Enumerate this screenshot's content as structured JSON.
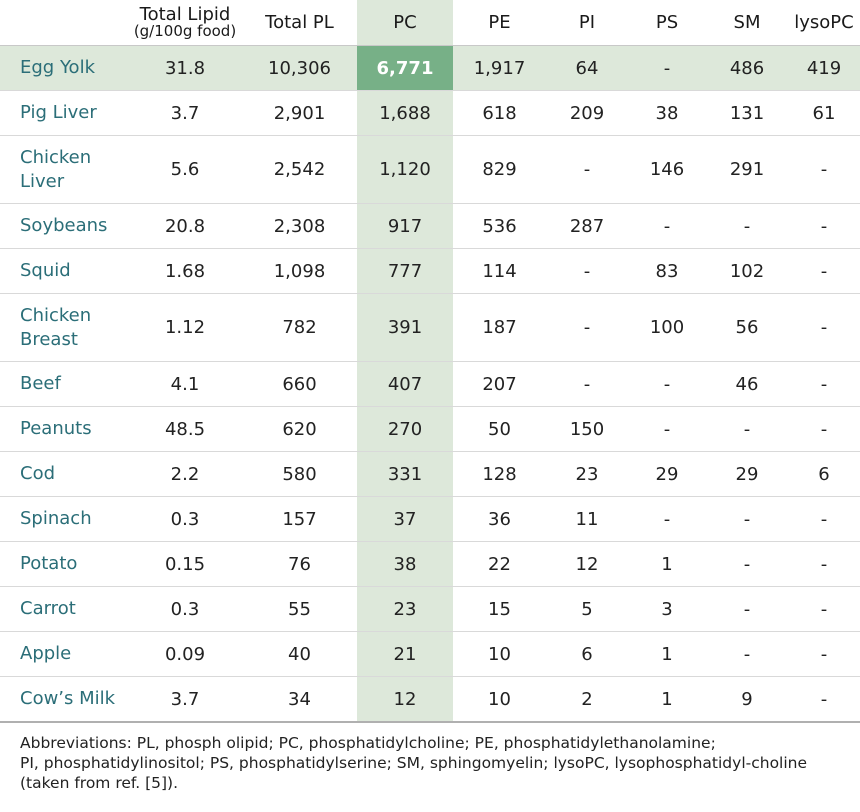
{
  "columns": {
    "food": "",
    "lipid_line1": "Total Lipid",
    "lipid_line2": "(g/100g food)",
    "total_pl": "Total PL",
    "pc": "PC",
    "pe": "PE",
    "pi": "PI",
    "ps": "PS",
    "sm": "SM",
    "lysopc": "lysoPC"
  },
  "rows": [
    {
      "food": "Egg Yolk",
      "lipid": "31.8",
      "total_pl": "10,306",
      "pc": "6,771",
      "pe": "1,917",
      "pi": "64",
      "ps": "-",
      "sm": "486",
      "lysopc": "419"
    },
    {
      "food": "Pig Liver",
      "lipid": "3.7",
      "total_pl": "2,901",
      "pc": "1,688",
      "pe": "618",
      "pi": "209",
      "ps": "38",
      "sm": "131",
      "lysopc": "61"
    },
    {
      "food_line1": "Chicken",
      "food_line2": "Liver",
      "lipid": "5.6",
      "total_pl": "2,542",
      "pc": "1,120",
      "pe": "829",
      "pi": "-",
      "ps": "146",
      "sm": "291",
      "lysopc": "-"
    },
    {
      "food": "Soybeans",
      "lipid": "20.8",
      "total_pl": "2,308",
      "pc": "917",
      "pe": "536",
      "pi": "287",
      "ps": "-",
      "sm": "-",
      "lysopc": "-"
    },
    {
      "food": "Squid",
      "lipid": "1.68",
      "total_pl": "1,098",
      "pc": "777",
      "pe": "114",
      "pi": "-",
      "ps": "83",
      "sm": "102",
      "lysopc": "-"
    },
    {
      "food_line1": "Chicken",
      "food_line2": "Breast",
      "lipid": "1.12",
      "total_pl": "782",
      "pc": "391",
      "pe": "187",
      "pi": "-",
      "ps": "100",
      "sm": "56",
      "lysopc": "-"
    },
    {
      "food": "Beef",
      "lipid": "4.1",
      "total_pl": "660",
      "pc": "407",
      "pe": "207",
      "pi": "-",
      "ps": "-",
      "sm": "46",
      "lysopc": "-"
    },
    {
      "food": "Peanuts",
      "lipid": "48.5",
      "total_pl": "620",
      "pc": "270",
      "pe": "50",
      "pi": "150",
      "ps": "-",
      "sm": "-",
      "lysopc": "-"
    },
    {
      "food": "Cod",
      "lipid": "2.2",
      "total_pl": "580",
      "pc": "331",
      "pe": "128",
      "pi": "23",
      "ps": "29",
      "sm": "29",
      "lysopc": "6"
    },
    {
      "food": "Spinach",
      "lipid": "0.3",
      "total_pl": "157",
      "pc": "37",
      "pe": "36",
      "pi": "11",
      "ps": "-",
      "sm": "-",
      "lysopc": "-"
    },
    {
      "food": "Potato",
      "lipid": "0.15",
      "total_pl": "76",
      "pc": "38",
      "pe": "22",
      "pi": "12",
      "ps": "1",
      "sm": "-",
      "lysopc": "-"
    },
    {
      "food": "Carrot",
      "lipid": "0.3",
      "total_pl": "55",
      "pc": "23",
      "pe": "15",
      "pi": "5",
      "ps": "3",
      "sm": "-",
      "lysopc": "-"
    },
    {
      "food": "Apple",
      "lipid": "0.09",
      "total_pl": "40",
      "pc": "21",
      "pe": "10",
      "pi": "6",
      "ps": "1",
      "sm": "-",
      "lysopc": "-"
    },
    {
      "food": "Cow’s Milk",
      "lipid": "3.7",
      "total_pl": "34",
      "pc": "12",
      "pe": "10",
      "pi": "2",
      "ps": "1",
      "sm": "9",
      "lysopc": "-"
    }
  ],
  "footnote": {
    "line1": "Abbreviations: PL, phosph olipid; PC, phosphatidylcholine; PE, phosphatidylethanolamine;",
    "line2": "PI, phosphatidylinositol; PS, phosphatidylserine; SM, sphingomyelin; lysoPC, lysophosphatidyl-choline",
    "line3": "(taken from ref. [5])."
  },
  "colors": {
    "food_text": "#2b6e78",
    "highlight_row": "#dde8da",
    "highlight_cell": "#77b087"
  }
}
